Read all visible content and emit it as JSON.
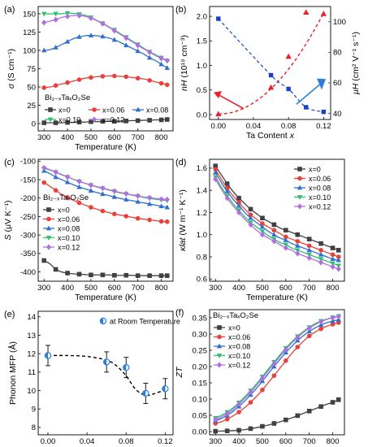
{
  "chart_data": [
    {
      "id": "a",
      "panel_label": "(a)",
      "type": "line",
      "ylabel_main": "σ",
      "ylabel_unit": "(S cm⁻¹)",
      "xlabel": "Temperature (K)",
      "xlim": [
        275,
        850
      ],
      "ylim": [
        -10,
        160
      ],
      "xticks": [
        300,
        400,
        500,
        600,
        700,
        800
      ],
      "yticks": [
        0,
        25,
        50,
        75,
        100,
        125,
        150
      ],
      "x": [
        300,
        325,
        350,
        375,
        400,
        425,
        450,
        475,
        500,
        525,
        550,
        575,
        600,
        625,
        650,
        675,
        700,
        725,
        750,
        775,
        800,
        825
      ],
      "legend_title": "Bi₂₋ₓTaₓO₂Se",
      "series": [
        {
          "name": "x=0",
          "color": "#404040",
          "marker": "square",
          "values": [
            1,
            1,
            1,
            1,
            1.5,
            1.5,
            2,
            2,
            2.5,
            2.5,
            3,
            3,
            3,
            3.5,
            3.5,
            4,
            4,
            4.5,
            4.5,
            5,
            5,
            5.5
          ]
        },
        {
          "name": "x=0.06",
          "color": "#e8403a",
          "marker": "circle",
          "values": [
            49,
            50,
            52,
            54,
            56,
            58,
            60,
            62,
            63,
            64,
            64.5,
            65,
            65,
            64.5,
            64,
            63,
            62,
            61,
            59,
            57,
            55,
            53
          ]
        },
        {
          "name": "x=0.08",
          "color": "#2f6fd0",
          "marker": "triangle-up",
          "values": [
            100,
            101,
            104,
            108,
            112,
            116,
            118.5,
            120,
            120.5,
            120,
            119,
            117,
            114.5,
            111,
            107,
            103,
            99,
            95,
            90,
            86,
            81,
            76
          ]
        },
        {
          "name": "x=0.10",
          "color": "#2fbf71",
          "marker": "triangle-down",
          "values": [
            150,
            150,
            150,
            150,
            151,
            150.5,
            149.5,
            148,
            145,
            141,
            137,
            132.5,
            128,
            123,
            118,
            113,
            108,
            103,
            98,
            94,
            90,
            86
          ]
        },
        {
          "name": "x=0.12",
          "color": "#b06fdc",
          "marker": "diamond",
          "values": [
            138,
            140,
            142,
            145,
            146.5,
            147.5,
            147.5,
            146.5,
            144,
            140.5,
            136.5,
            132,
            127,
            122,
            117,
            112,
            107,
            102,
            97.5,
            93,
            89,
            86
          ]
        }
      ]
    },
    {
      "id": "b",
      "panel_label": "(b)",
      "type": "scatter",
      "ylabel_main": "nH",
      "ylabel_unit": "(10¹⁹ cm⁻³)",
      "ylabel2_main": "μH",
      "ylabel2_unit": "(cm² V⁻¹ s⁻¹)",
      "xlabel": "Ta Content x",
      "xlim": [
        -0.01,
        0.128
      ],
      "xticks": [
        0,
        0.04,
        0.08,
        0.12
      ],
      "xtick_labels": [
        "0.00",
        "0.04",
        "0.08",
        "0.12"
      ],
      "ylim": [
        -0.1,
        2.2
      ],
      "yticks": [
        0,
        0.5,
        1.0,
        1.5,
        2.0
      ],
      "ytick_labels": [
        "0.0",
        "0.5",
        "1.0",
        "1.5",
        "2.0"
      ],
      "ylim2": [
        36,
        110
      ],
      "yticks2": [
        40,
        60,
        80,
        100
      ],
      "carrier": {
        "color": "#e8202a",
        "x": [
          0,
          0.06,
          0.08,
          0.1,
          0.12
        ],
        "values": [
          0.01,
          0.55,
          1.18,
          2.08,
          2.05
        ]
      },
      "mobility": {
        "color": "#1a3fbf",
        "x": [
          0,
          0.06,
          0.08,
          0.1,
          0.12
        ],
        "values": [
          102,
          65,
          56,
          44,
          41
        ]
      }
    },
    {
      "id": "c",
      "panel_label": "(c)",
      "type": "line",
      "ylabel_main": "S",
      "ylabel_unit": "(μV K⁻¹)",
      "xlabel": "Temperature (K)",
      "xlim": [
        275,
        850
      ],
      "ylim": [
        -425,
        -95
      ],
      "xticks": [
        300,
        400,
        500,
        600,
        700,
        800
      ],
      "yticks": [
        -400,
        -350,
        -300,
        -250,
        -200,
        -150,
        -100
      ],
      "x": [
        300,
        325,
        350,
        375,
        400,
        425,
        450,
        475,
        500,
        525,
        550,
        575,
        600,
        625,
        650,
        675,
        700,
        725,
        750,
        775,
        800,
        825
      ],
      "legend_title": "Bi₂₋ₓTaₓO₂Se",
      "series": [
        {
          "name": "x=0",
          "color": "#404040",
          "marker": "square",
          "values": [
            -369,
            -378,
            -393,
            -400,
            -403,
            -405,
            -406,
            -407,
            -408,
            -408,
            -408,
            -408,
            -409,
            -409,
            -409,
            -409,
            -410,
            -410,
            -410,
            -410,
            -410,
            -410
          ]
        },
        {
          "name": "x=0.06",
          "color": "#e8403a",
          "marker": "circle",
          "values": [
            -158,
            -168,
            -179,
            -190,
            -198,
            -206,
            -213,
            -219,
            -225,
            -230,
            -235,
            -239,
            -243,
            -246,
            -249,
            -252,
            -255,
            -257,
            -259,
            -261,
            -263,
            -264
          ]
        },
        {
          "name": "x=0.08",
          "color": "#2f6fd0",
          "marker": "triangle-up",
          "values": [
            -126,
            -134,
            -143,
            -150,
            -157,
            -164,
            -170,
            -175,
            -180,
            -185,
            -189,
            -193,
            -197,
            -201,
            -204,
            -207,
            -210,
            -213,
            -216,
            -219,
            -222,
            -225
          ]
        },
        {
          "name": "x=0.10",
          "color": "#2fbf71",
          "marker": "triangle-down",
          "values": [
            -120,
            -124,
            -130,
            -136,
            -143,
            -149,
            -155,
            -160,
            -165,
            -170,
            -174,
            -178,
            -182,
            -186,
            -189,
            -192,
            -195,
            -198,
            -201,
            -203,
            -205,
            -207
          ]
        },
        {
          "name": "x=0.12",
          "color": "#b06fdc",
          "marker": "diamond",
          "values": [
            -118,
            -123,
            -130,
            -137,
            -143,
            -149,
            -155,
            -160,
            -165,
            -169,
            -173,
            -177,
            -181,
            -185,
            -188,
            -191,
            -194,
            -197,
            -199,
            -201,
            -203,
            -204
          ]
        }
      ]
    },
    {
      "id": "d",
      "panel_label": "(d)",
      "type": "line",
      "ylabel_main": "κlat",
      "ylabel_unit": "(W m⁻¹ K⁻¹)",
      "xlabel": "Temperature (K)",
      "xlim": [
        275,
        850
      ],
      "ylim": [
        0.58,
        1.68
      ],
      "xticks": [
        300,
        400,
        500,
        600,
        700,
        800
      ],
      "yticks": [
        0.6,
        0.8,
        1.0,
        1.2,
        1.4,
        1.6
      ],
      "ytick_labels": [
        "0.6",
        "0.8",
        "1.0",
        "1.2",
        "1.4",
        "1.6"
      ],
      "x": [
        300,
        325,
        350,
        375,
        400,
        425,
        450,
        475,
        500,
        525,
        550,
        575,
        600,
        625,
        650,
        675,
        700,
        725,
        750,
        775,
        800,
        825
      ],
      "series": [
        {
          "name": "x=0",
          "color": "#404040",
          "marker": "square",
          "values": [
            1.62,
            1.54,
            1.46,
            1.39,
            1.33,
            1.28,
            1.23,
            1.19,
            1.15,
            1.12,
            1.09,
            1.06,
            1.04,
            1.02,
            1.0,
            0.98,
            0.96,
            0.94,
            0.92,
            0.9,
            0.88,
            0.86
          ]
        },
        {
          "name": "x=0.06",
          "color": "#e8403a",
          "marker": "circle",
          "values": [
            1.59,
            1.5,
            1.42,
            1.35,
            1.29,
            1.23,
            1.18,
            1.14,
            1.1,
            1.07,
            1.04,
            1.01,
            0.98,
            0.96,
            0.94,
            0.92,
            0.9,
            0.88,
            0.86,
            0.84,
            0.82,
            0.8
          ]
        },
        {
          "name": "x=0.08",
          "color": "#2f6fd0",
          "marker": "triangle-up",
          "values": [
            1.56,
            1.47,
            1.39,
            1.32,
            1.26,
            1.2,
            1.15,
            1.11,
            1.07,
            1.03,
            1.0,
            0.97,
            0.95,
            0.92,
            0.9,
            0.88,
            0.86,
            0.84,
            0.82,
            0.8,
            0.78,
            0.77
          ]
        },
        {
          "name": "x=0.10",
          "color": "#2fbf71",
          "marker": "triangle-down",
          "values": [
            1.52,
            1.43,
            1.35,
            1.28,
            1.22,
            1.16,
            1.11,
            1.07,
            1.03,
            0.99,
            0.96,
            0.93,
            0.91,
            0.88,
            0.86,
            0.84,
            0.82,
            0.8,
            0.78,
            0.76,
            0.74,
            0.72
          ]
        },
        {
          "name": "x=0.12",
          "color": "#b06fdc",
          "marker": "diamond",
          "values": [
            1.5,
            1.41,
            1.33,
            1.26,
            1.2,
            1.14,
            1.09,
            1.04,
            1.0,
            0.97,
            0.94,
            0.91,
            0.88,
            0.86,
            0.83,
            0.81,
            0.79,
            0.77,
            0.75,
            0.73,
            0.71,
            0.69
          ]
        }
      ]
    },
    {
      "id": "e",
      "panel_label": "(e)",
      "type": "scatter",
      "ylabel": "Phonon MFP (Å)",
      "xlabel": "Ta Content x",
      "xlim": [
        -0.01,
        0.128
      ],
      "xticks": [
        0,
        0.04,
        0.08,
        0.12
      ],
      "xtick_labels": [
        "0.00",
        "0.04",
        "0.08",
        "0.12"
      ],
      "ylim": [
        7.6,
        14.3
      ],
      "yticks": [
        8,
        9,
        10,
        11,
        12,
        13,
        14
      ],
      "annotation": "at Room Temperature",
      "marker_color": "#2f7fd8",
      "points": {
        "x": [
          0,
          0.06,
          0.08,
          0.1,
          0.12
        ],
        "values": [
          11.9,
          11.55,
          11.25,
          9.85,
          10.1
        ],
        "errors": [
          0.55,
          0.55,
          0.55,
          0.55,
          0.55
        ]
      },
      "fit": {
        "x": [
          0,
          0.02,
          0.04,
          0.06,
          0.07,
          0.08,
          0.09,
          0.1,
          0.11,
          0.12
        ],
        "values": [
          11.9,
          11.9,
          11.85,
          11.65,
          11.35,
          10.8,
          10.05,
          9.75,
          9.85,
          10.05
        ]
      }
    },
    {
      "id": "f",
      "panel_label": "(f)",
      "type": "line",
      "ylabel": "ZT",
      "xlabel": "Temperature (K)",
      "xlim": [
        275,
        850
      ],
      "ylim": [
        -0.01,
        0.375
      ],
      "xticks": [
        300,
        400,
        500,
        600,
        700,
        800
      ],
      "yticks": [
        0.0,
        0.05,
        0.1,
        0.15,
        0.2,
        0.25,
        0.3,
        0.35
      ],
      "ytick_labels": [
        "0.00",
        "0.05",
        "0.10",
        "0.15",
        "0.20",
        "0.25",
        "0.30",
        "0.35"
      ],
      "x": [
        300,
        325,
        350,
        375,
        400,
        425,
        450,
        475,
        500,
        525,
        550,
        575,
        600,
        625,
        650,
        675,
        700,
        725,
        750,
        775,
        800,
        825
      ],
      "legend_title": "Bi₂₋ₓTaₓO₂Se",
      "series": [
        {
          "name": "x=0",
          "color": "#404040",
          "marker": "square",
          "values": [
            0.001,
            0.0015,
            0.002,
            0.003,
            0.004,
            0.006,
            0.009,
            0.012,
            0.016,
            0.02,
            0.025,
            0.03,
            0.036,
            0.042,
            0.049,
            0.056,
            0.063,
            0.07,
            0.077,
            0.084,
            0.09,
            0.098
          ]
        },
        {
          "name": "x=0.06",
          "color": "#e8403a",
          "marker": "circle",
          "values": [
            0.025,
            0.03,
            0.038,
            0.048,
            0.06,
            0.074,
            0.09,
            0.108,
            0.128,
            0.15,
            0.172,
            0.195,
            0.218,
            0.24,
            0.26,
            0.278,
            0.294,
            0.306,
            0.316,
            0.324,
            0.33,
            0.335
          ]
        },
        {
          "name": "x=0.08",
          "color": "#2f6fd0",
          "marker": "triangle-up",
          "values": [
            0.033,
            0.04,
            0.05,
            0.062,
            0.077,
            0.094,
            0.113,
            0.133,
            0.155,
            0.178,
            0.2,
            0.222,
            0.243,
            0.262,
            0.28,
            0.295,
            0.308,
            0.319,
            0.328,
            0.335,
            0.34,
            0.344
          ]
        },
        {
          "name": "x=0.10",
          "color": "#2fbf71",
          "marker": "triangle-down",
          "values": [
            0.042,
            0.05,
            0.06,
            0.073,
            0.089,
            0.107,
            0.126,
            0.147,
            0.169,
            0.192,
            0.214,
            0.236,
            0.257,
            0.276,
            0.293,
            0.308,
            0.321,
            0.332,
            0.34,
            0.346,
            0.351,
            0.355
          ]
        },
        {
          "name": "x=0.12",
          "color": "#b06fdc",
          "marker": "diamond",
          "values": [
            0.037,
            0.045,
            0.055,
            0.068,
            0.084,
            0.102,
            0.121,
            0.142,
            0.164,
            0.187,
            0.209,
            0.231,
            0.252,
            0.272,
            0.289,
            0.305,
            0.318,
            0.329,
            0.338,
            0.345,
            0.35,
            0.354
          ]
        }
      ]
    }
  ]
}
